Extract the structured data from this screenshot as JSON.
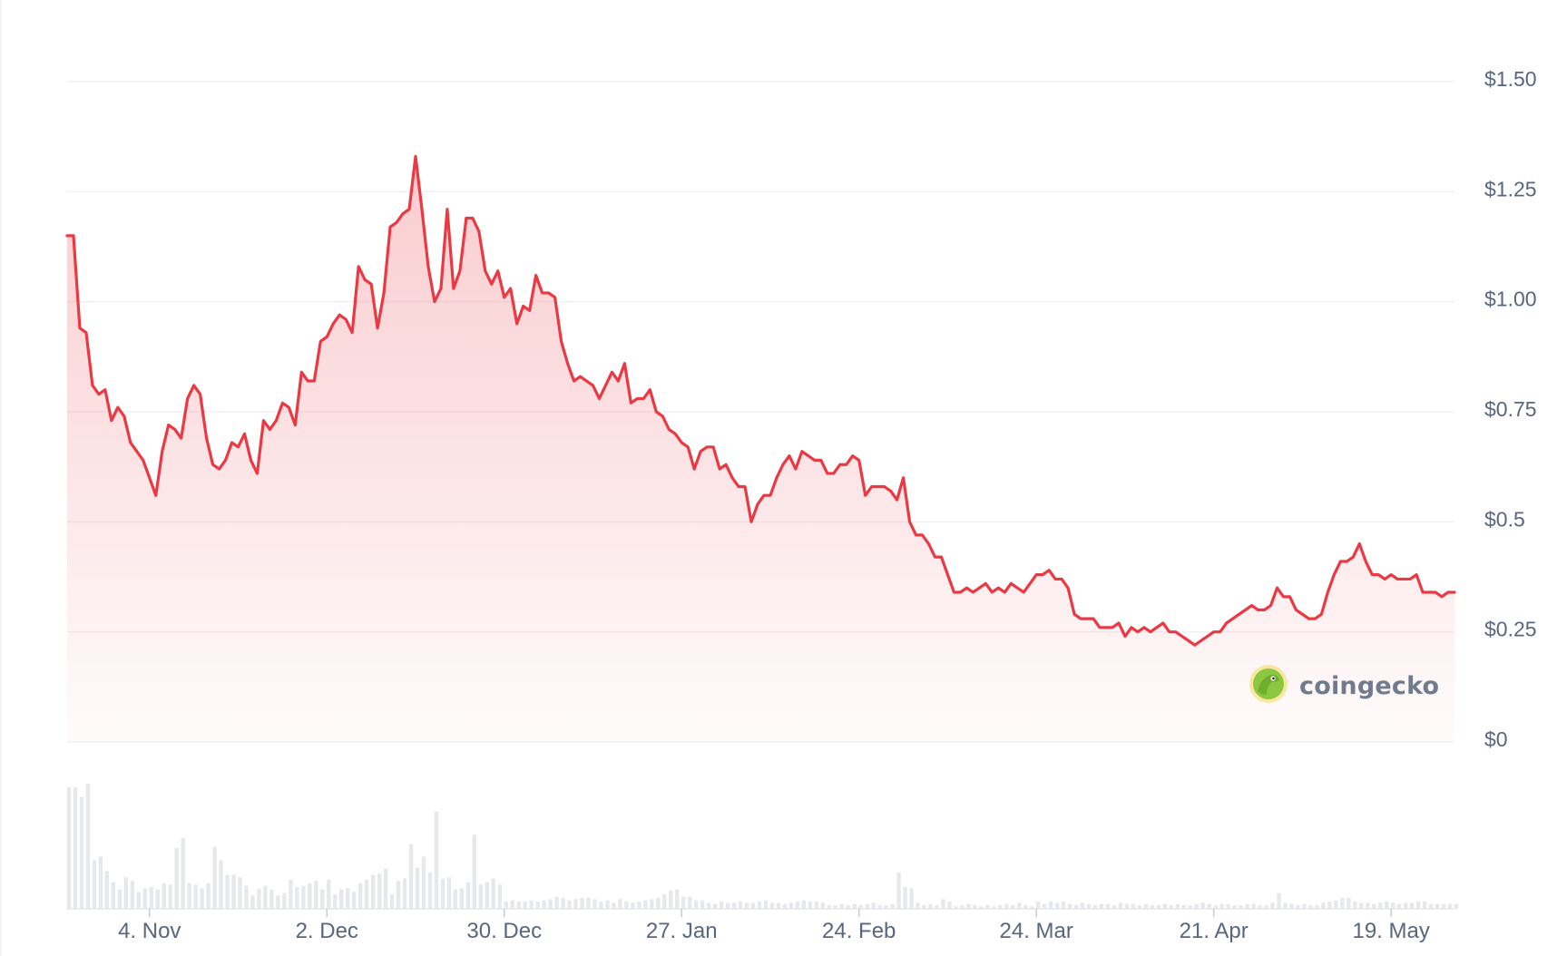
{
  "chart_data": {
    "type": "line",
    "title": "",
    "xlabel": "",
    "ylabel": "",
    "watermark": "coingecko",
    "colors": {
      "line": "#ea3943",
      "fill": "#ea3943",
      "grid": "#eff2f5",
      "volume": "#e6e8ec",
      "axis_text": "#58667e"
    },
    "y_ticks": [
      "$0",
      "$0.25",
      "$0.5",
      "$0.75",
      "$1.00",
      "$1.25",
      "$1.50"
    ],
    "y_tick_values": [
      0,
      0.25,
      0.5,
      0.75,
      1.0,
      1.25,
      1.5
    ],
    "x_ticks": [
      "4. Nov",
      "2. Dec",
      "30. Dec",
      "27. Jan",
      "24. Feb",
      "24. Mar",
      "21. Apr",
      "19. May"
    ],
    "x_tick_days": [
      13,
      41,
      69,
      97,
      125,
      153,
      181,
      209
    ],
    "x_range_days": [
      0,
      220
    ],
    "ylim": [
      0,
      1.5
    ],
    "grid": true,
    "series": [
      {
        "unit": "USD",
        "points": [
          [
            0,
            1.15
          ],
          [
            1,
            1.15
          ],
          [
            2,
            0.94
          ],
          [
            3,
            0.93
          ],
          [
            4,
            0.81
          ],
          [
            5,
            0.79
          ],
          [
            6,
            0.8
          ],
          [
            7,
            0.73
          ],
          [
            8,
            0.76
          ],
          [
            9,
            0.74
          ],
          [
            10,
            0.68
          ],
          [
            11,
            0.66
          ],
          [
            12,
            0.64
          ],
          [
            13,
            0.6
          ],
          [
            14,
            0.56
          ],
          [
            15,
            0.66
          ],
          [
            16,
            0.72
          ],
          [
            17,
            0.71
          ],
          [
            18,
            0.69
          ],
          [
            19,
            0.78
          ],
          [
            20,
            0.81
          ],
          [
            21,
            0.79
          ],
          [
            22,
            0.69
          ],
          [
            23,
            0.63
          ],
          [
            24,
            0.62
          ],
          [
            25,
            0.64
          ],
          [
            26,
            0.68
          ],
          [
            27,
            0.67
          ],
          [
            28,
            0.7
          ],
          [
            29,
            0.64
          ],
          [
            30,
            0.61
          ],
          [
            31,
            0.73
          ],
          [
            32,
            0.71
          ],
          [
            33,
            0.73
          ],
          [
            34,
            0.77
          ],
          [
            35,
            0.76
          ],
          [
            36,
            0.72
          ],
          [
            37,
            0.84
          ],
          [
            38,
            0.82
          ],
          [
            39,
            0.82
          ],
          [
            40,
            0.91
          ],
          [
            41,
            0.92
          ],
          [
            42,
            0.95
          ],
          [
            43,
            0.97
          ],
          [
            44,
            0.96
          ],
          [
            45,
            0.93
          ],
          [
            46,
            1.08
          ],
          [
            47,
            1.05
          ],
          [
            48,
            1.04
          ],
          [
            49,
            0.94
          ],
          [
            50,
            1.02
          ],
          [
            51,
            1.17
          ],
          [
            52,
            1.18
          ],
          [
            53,
            1.2
          ],
          [
            54,
            1.21
          ],
          [
            55,
            1.33
          ],
          [
            56,
            1.21
          ],
          [
            57,
            1.08
          ],
          [
            58,
            1.0
          ],
          [
            59,
            1.03
          ],
          [
            60,
            1.21
          ],
          [
            61,
            1.03
          ],
          [
            62,
            1.07
          ],
          [
            63,
            1.19
          ],
          [
            64,
            1.19
          ],
          [
            65,
            1.16
          ],
          [
            66,
            1.07
          ],
          [
            67,
            1.04
          ],
          [
            68,
            1.07
          ],
          [
            69,
            1.01
          ],
          [
            70,
            1.03
          ],
          [
            71,
            0.95
          ],
          [
            72,
            0.99
          ],
          [
            73,
            0.98
          ],
          [
            74,
            1.06
          ],
          [
            75,
            1.02
          ],
          [
            76,
            1.02
          ],
          [
            77,
            1.01
          ],
          [
            78,
            0.91
          ],
          [
            79,
            0.86
          ],
          [
            80,
            0.82
          ],
          [
            81,
            0.83
          ],
          [
            82,
            0.82
          ],
          [
            83,
            0.81
          ],
          [
            84,
            0.78
          ],
          [
            85,
            0.81
          ],
          [
            86,
            0.84
          ],
          [
            87,
            0.82
          ],
          [
            88,
            0.86
          ],
          [
            89,
            0.77
          ],
          [
            90,
            0.78
          ],
          [
            91,
            0.78
          ],
          [
            92,
            0.8
          ],
          [
            93,
            0.75
          ],
          [
            94,
            0.74
          ],
          [
            95,
            0.71
          ],
          [
            96,
            0.7
          ],
          [
            97,
            0.68
          ],
          [
            98,
            0.67
          ],
          [
            99,
            0.62
          ],
          [
            100,
            0.66
          ],
          [
            101,
            0.67
          ],
          [
            102,
            0.67
          ],
          [
            103,
            0.62
          ],
          [
            104,
            0.63
          ],
          [
            105,
            0.6
          ],
          [
            106,
            0.58
          ],
          [
            107,
            0.58
          ],
          [
            108,
            0.5
          ],
          [
            109,
            0.54
          ],
          [
            110,
            0.56
          ],
          [
            111,
            0.56
          ],
          [
            112,
            0.6
          ],
          [
            113,
            0.63
          ],
          [
            114,
            0.65
          ],
          [
            115,
            0.62
          ],
          [
            116,
            0.66
          ],
          [
            117,
            0.65
          ],
          [
            118,
            0.64
          ],
          [
            119,
            0.64
          ],
          [
            120,
            0.61
          ],
          [
            121,
            0.61
          ],
          [
            122,
            0.63
          ],
          [
            123,
            0.63
          ],
          [
            124,
            0.65
          ],
          [
            125,
            0.64
          ],
          [
            126,
            0.56
          ],
          [
            127,
            0.58
          ],
          [
            128,
            0.58
          ],
          [
            129,
            0.58
          ],
          [
            130,
            0.57
          ],
          [
            131,
            0.55
          ],
          [
            132,
            0.6
          ],
          [
            133,
            0.5
          ],
          [
            134,
            0.47
          ],
          [
            135,
            0.47
          ],
          [
            136,
            0.45
          ],
          [
            137,
            0.42
          ],
          [
            138,
            0.42
          ],
          [
            139,
            0.38
          ],
          [
            140,
            0.34
          ],
          [
            141,
            0.34
          ],
          [
            142,
            0.35
          ],
          [
            143,
            0.34
          ],
          [
            144,
            0.35
          ],
          [
            145,
            0.36
          ],
          [
            146,
            0.34
          ],
          [
            147,
            0.35
          ],
          [
            148,
            0.34
          ],
          [
            149,
            0.36
          ],
          [
            150,
            0.35
          ],
          [
            151,
            0.34
          ],
          [
            152,
            0.36
          ],
          [
            153,
            0.38
          ],
          [
            154,
            0.38
          ],
          [
            155,
            0.39
          ],
          [
            156,
            0.37
          ],
          [
            157,
            0.37
          ],
          [
            158,
            0.35
          ],
          [
            159,
            0.29
          ],
          [
            160,
            0.28
          ],
          [
            161,
            0.28
          ],
          [
            162,
            0.28
          ],
          [
            163,
            0.26
          ],
          [
            164,
            0.26
          ],
          [
            165,
            0.26
          ],
          [
            166,
            0.27
          ],
          [
            167,
            0.24
          ],
          [
            168,
            0.26
          ],
          [
            169,
            0.25
          ],
          [
            170,
            0.26
          ],
          [
            171,
            0.25
          ],
          [
            172,
            0.26
          ],
          [
            173,
            0.27
          ],
          [
            174,
            0.25
          ],
          [
            175,
            0.25
          ],
          [
            176,
            0.24
          ],
          [
            177,
            0.23
          ],
          [
            178,
            0.22
          ],
          [
            179,
            0.23
          ],
          [
            180,
            0.24
          ],
          [
            181,
            0.25
          ],
          [
            182,
            0.25
          ],
          [
            183,
            0.27
          ],
          [
            184,
            0.28
          ],
          [
            185,
            0.29
          ],
          [
            186,
            0.3
          ],
          [
            187,
            0.31
          ],
          [
            188,
            0.3
          ],
          [
            189,
            0.3
          ],
          [
            190,
            0.31
          ],
          [
            191,
            0.35
          ],
          [
            192,
            0.33
          ],
          [
            193,
            0.33
          ],
          [
            194,
            0.3
          ],
          [
            195,
            0.29
          ],
          [
            196,
            0.28
          ],
          [
            197,
            0.28
          ],
          [
            198,
            0.29
          ],
          [
            199,
            0.34
          ],
          [
            200,
            0.38
          ],
          [
            201,
            0.41
          ],
          [
            202,
            0.41
          ],
          [
            203,
            0.42
          ],
          [
            204,
            0.45
          ],
          [
            205,
            0.41
          ],
          [
            206,
            0.38
          ],
          [
            207,
            0.38
          ],
          [
            208,
            0.37
          ],
          [
            209,
            0.38
          ],
          [
            210,
            0.37
          ],
          [
            211,
            0.37
          ],
          [
            212,
            0.37
          ],
          [
            213,
            0.38
          ],
          [
            214,
            0.34
          ],
          [
            215,
            0.34
          ],
          [
            216,
            0.34
          ],
          [
            217,
            0.33
          ],
          [
            218,
            0.34
          ],
          [
            219,
            0.34
          ]
        ]
      }
    ],
    "volume": [
      1.0,
      1.0,
      0.92,
      1.03,
      0.4,
      0.43,
      0.31,
      0.22,
      0.16,
      0.26,
      0.23,
      0.14,
      0.17,
      0.18,
      0.16,
      0.21,
      0.2,
      0.5,
      0.58,
      0.21,
      0.2,
      0.17,
      0.21,
      0.51,
      0.4,
      0.28,
      0.28,
      0.26,
      0.19,
      0.11,
      0.16,
      0.19,
      0.16,
      0.11,
      0.13,
      0.24,
      0.18,
      0.19,
      0.21,
      0.23,
      0.16,
      0.24,
      0.12,
      0.16,
      0.17,
      0.14,
      0.21,
      0.24,
      0.28,
      0.29,
      0.33,
      0.12,
      0.23,
      0.25,
      0.53,
      0.34,
      0.43,
      0.3,
      0.8,
      0.25,
      0.26,
      0.16,
      0.17,
      0.22,
      0.61,
      0.2,
      0.22,
      0.25,
      0.2,
      0.06,
      0.07,
      0.06,
      0.06,
      0.07,
      0.06,
      0.07,
      0.08,
      0.1,
      0.09,
      0.07,
      0.08,
      0.09,
      0.09,
      0.08,
      0.06,
      0.07,
      0.05,
      0.08,
      0.06,
      0.05,
      0.06,
      0.07,
      0.08,
      0.09,
      0.12,
      0.15,
      0.16,
      0.1,
      0.1,
      0.07,
      0.07,
      0.05,
      0.04,
      0.06,
      0.05,
      0.05,
      0.06,
      0.05,
      0.05,
      0.06,
      0.07,
      0.05,
      0.05,
      0.04,
      0.05,
      0.06,
      0.07,
      0.06,
      0.06,
      0.05,
      0.03,
      0.03,
      0.04,
      0.03,
      0.04,
      0.03,
      0.04,
      0.05,
      0.03,
      0.03,
      0.04,
      0.3,
      0.18,
      0.17,
      0.05,
      0.03,
      0.04,
      0.03,
      0.08,
      0.06,
      0.02,
      0.03,
      0.04,
      0.03,
      0.02,
      0.03,
      0.02,
      0.03,
      0.04,
      0.03,
      0.05,
      0.03,
      0.02,
      0.06,
      0.04,
      0.06,
      0.05,
      0.06,
      0.04,
      0.03,
      0.05,
      0.04,
      0.03,
      0.04,
      0.04,
      0.03,
      0.05,
      0.04,
      0.04,
      0.03,
      0.04,
      0.03,
      0.03,
      0.04,
      0.03,
      0.04,
      0.03,
      0.03,
      0.04,
      0.05,
      0.04,
      0.03,
      0.04,
      0.04,
      0.03,
      0.03,
      0.04,
      0.04,
      0.03,
      0.03,
      0.05,
      0.13,
      0.05,
      0.04,
      0.03,
      0.04,
      0.03,
      0.03,
      0.05,
      0.06,
      0.07,
      0.09,
      0.09,
      0.06,
      0.05,
      0.05,
      0.04,
      0.05,
      0.06,
      0.05,
      0.04,
      0.05,
      0.05,
      0.06,
      0.06,
      0.04,
      0.04,
      0.04,
      0.04,
      0.04
    ]
  }
}
